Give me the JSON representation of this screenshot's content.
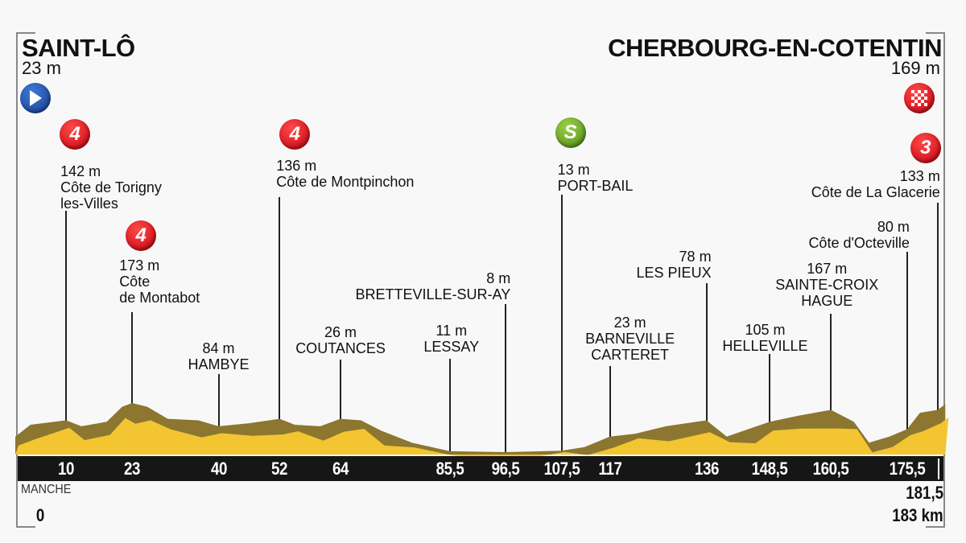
{
  "start": {
    "city": "SAINT-LÔ",
    "altitude": "23 m",
    "icon": "start-play-icon"
  },
  "finish": {
    "city": "CHERBOURG-EN-COTENTIN",
    "altitude": "169 m",
    "icon": "finish-checkered-flag-icon"
  },
  "department": "MANCHE",
  "start_km": "0",
  "end_km_marker": "181,5",
  "total_distance": "183 km",
  "colors": {
    "profile_fill": "#f2c531",
    "profile_shadow": "#8c7630",
    "km_bar": "#161616",
    "climb_badge": "#d8101a",
    "sprint_badge": "#6aab22",
    "start_badge": "#2a5bb5"
  },
  "chart_data": {
    "type": "area",
    "xlabel": "",
    "ylabel": "",
    "x_unit": "km",
    "y_unit": "m",
    "xlim": [
      0,
      183
    ],
    "x_ticks": [
      "10",
      "23",
      "40",
      "52",
      "64",
      "85,5",
      "96,5",
      "107,5",
      "117",
      "136",
      "148,5",
      "160,5",
      "175,5"
    ],
    "waypoints": [
      {
        "km": 10,
        "km_label": "10",
        "altitude": "142 m",
        "name": [
          "Côte de Torigny",
          "les-Villes"
        ],
        "badge": "4",
        "badge_type": "climb"
      },
      {
        "km": 23,
        "km_label": "23",
        "altitude": "173 m",
        "name": [
          "Côte",
          "de Montabot"
        ],
        "badge": "4",
        "badge_type": "climb"
      },
      {
        "km": 40,
        "km_label": "40",
        "altitude": "84 m",
        "name": [
          "HAMBYE"
        ]
      },
      {
        "km": 52,
        "km_label": "52",
        "altitude": "136 m",
        "name": [
          "Côte de Montpinchon"
        ],
        "badge": "4",
        "badge_type": "climb"
      },
      {
        "km": 64,
        "km_label": "64",
        "altitude": "26 m",
        "name": [
          "COUTANCES"
        ]
      },
      {
        "km": 85.5,
        "km_label": "85,5",
        "altitude": "11 m",
        "name": [
          "LESSAY"
        ]
      },
      {
        "km": 96.5,
        "km_label": "96,5",
        "altitude": "8 m",
        "name": [
          "BRETTEVILLE-SUR-AY"
        ]
      },
      {
        "km": 107.5,
        "km_label": "107,5",
        "altitude": "13 m",
        "name": [
          "PORT-BAIL"
        ],
        "badge": "S",
        "badge_type": "sprint"
      },
      {
        "km": 117,
        "km_label": "117",
        "altitude": "23 m",
        "name": [
          "BARNEVILLE",
          "CARTERET"
        ]
      },
      {
        "km": 136,
        "km_label": "136",
        "altitude": "78 m",
        "name": [
          "LES PIEUX"
        ]
      },
      {
        "km": 148.5,
        "km_label": "148,5",
        "altitude": "105 m",
        "name": [
          "HELLEVILLE"
        ]
      },
      {
        "km": 160.5,
        "km_label": "160,5",
        "altitude": "167 m",
        "name": [
          "SAINTE-CROIX",
          "HAGUE"
        ]
      },
      {
        "km": 175.5,
        "km_label": "175,5",
        "altitude": "80 m",
        "name": [
          "Côte d'Octeville"
        ]
      },
      {
        "km": 181.5,
        "km_label": "181,5",
        "altitude": "133 m",
        "name": [
          "Côte de La Glacerie"
        ],
        "badge": "3",
        "badge_type": "climb"
      }
    ],
    "profile": [
      [
        0,
        60
      ],
      [
        3,
        100
      ],
      [
        10,
        115
      ],
      [
        13,
        95
      ],
      [
        18,
        110
      ],
      [
        21,
        160
      ],
      [
        23,
        173
      ],
      [
        26,
        160
      ],
      [
        30,
        120
      ],
      [
        36,
        115
      ],
      [
        40,
        95
      ],
      [
        46,
        105
      ],
      [
        52,
        120
      ],
      [
        55,
        100
      ],
      [
        60,
        95
      ],
      [
        64,
        120
      ],
      [
        68,
        115
      ],
      [
        72,
        80
      ],
      [
        78,
        40
      ],
      [
        85.5,
        11
      ],
      [
        96.5,
        8
      ],
      [
        107.5,
        13
      ],
      [
        112,
        25
      ],
      [
        117,
        60
      ],
      [
        122,
        70
      ],
      [
        128,
        95
      ],
      [
        136,
        115
      ],
      [
        140,
        60
      ],
      [
        145,
        90
      ],
      [
        148.5,
        110
      ],
      [
        154,
        130
      ],
      [
        160.5,
        150
      ],
      [
        165,
        110
      ],
      [
        168,
        40
      ],
      [
        172,
        60
      ],
      [
        175.5,
        85
      ],
      [
        178,
        140
      ],
      [
        181.5,
        150
      ],
      [
        183,
        169
      ]
    ]
  }
}
